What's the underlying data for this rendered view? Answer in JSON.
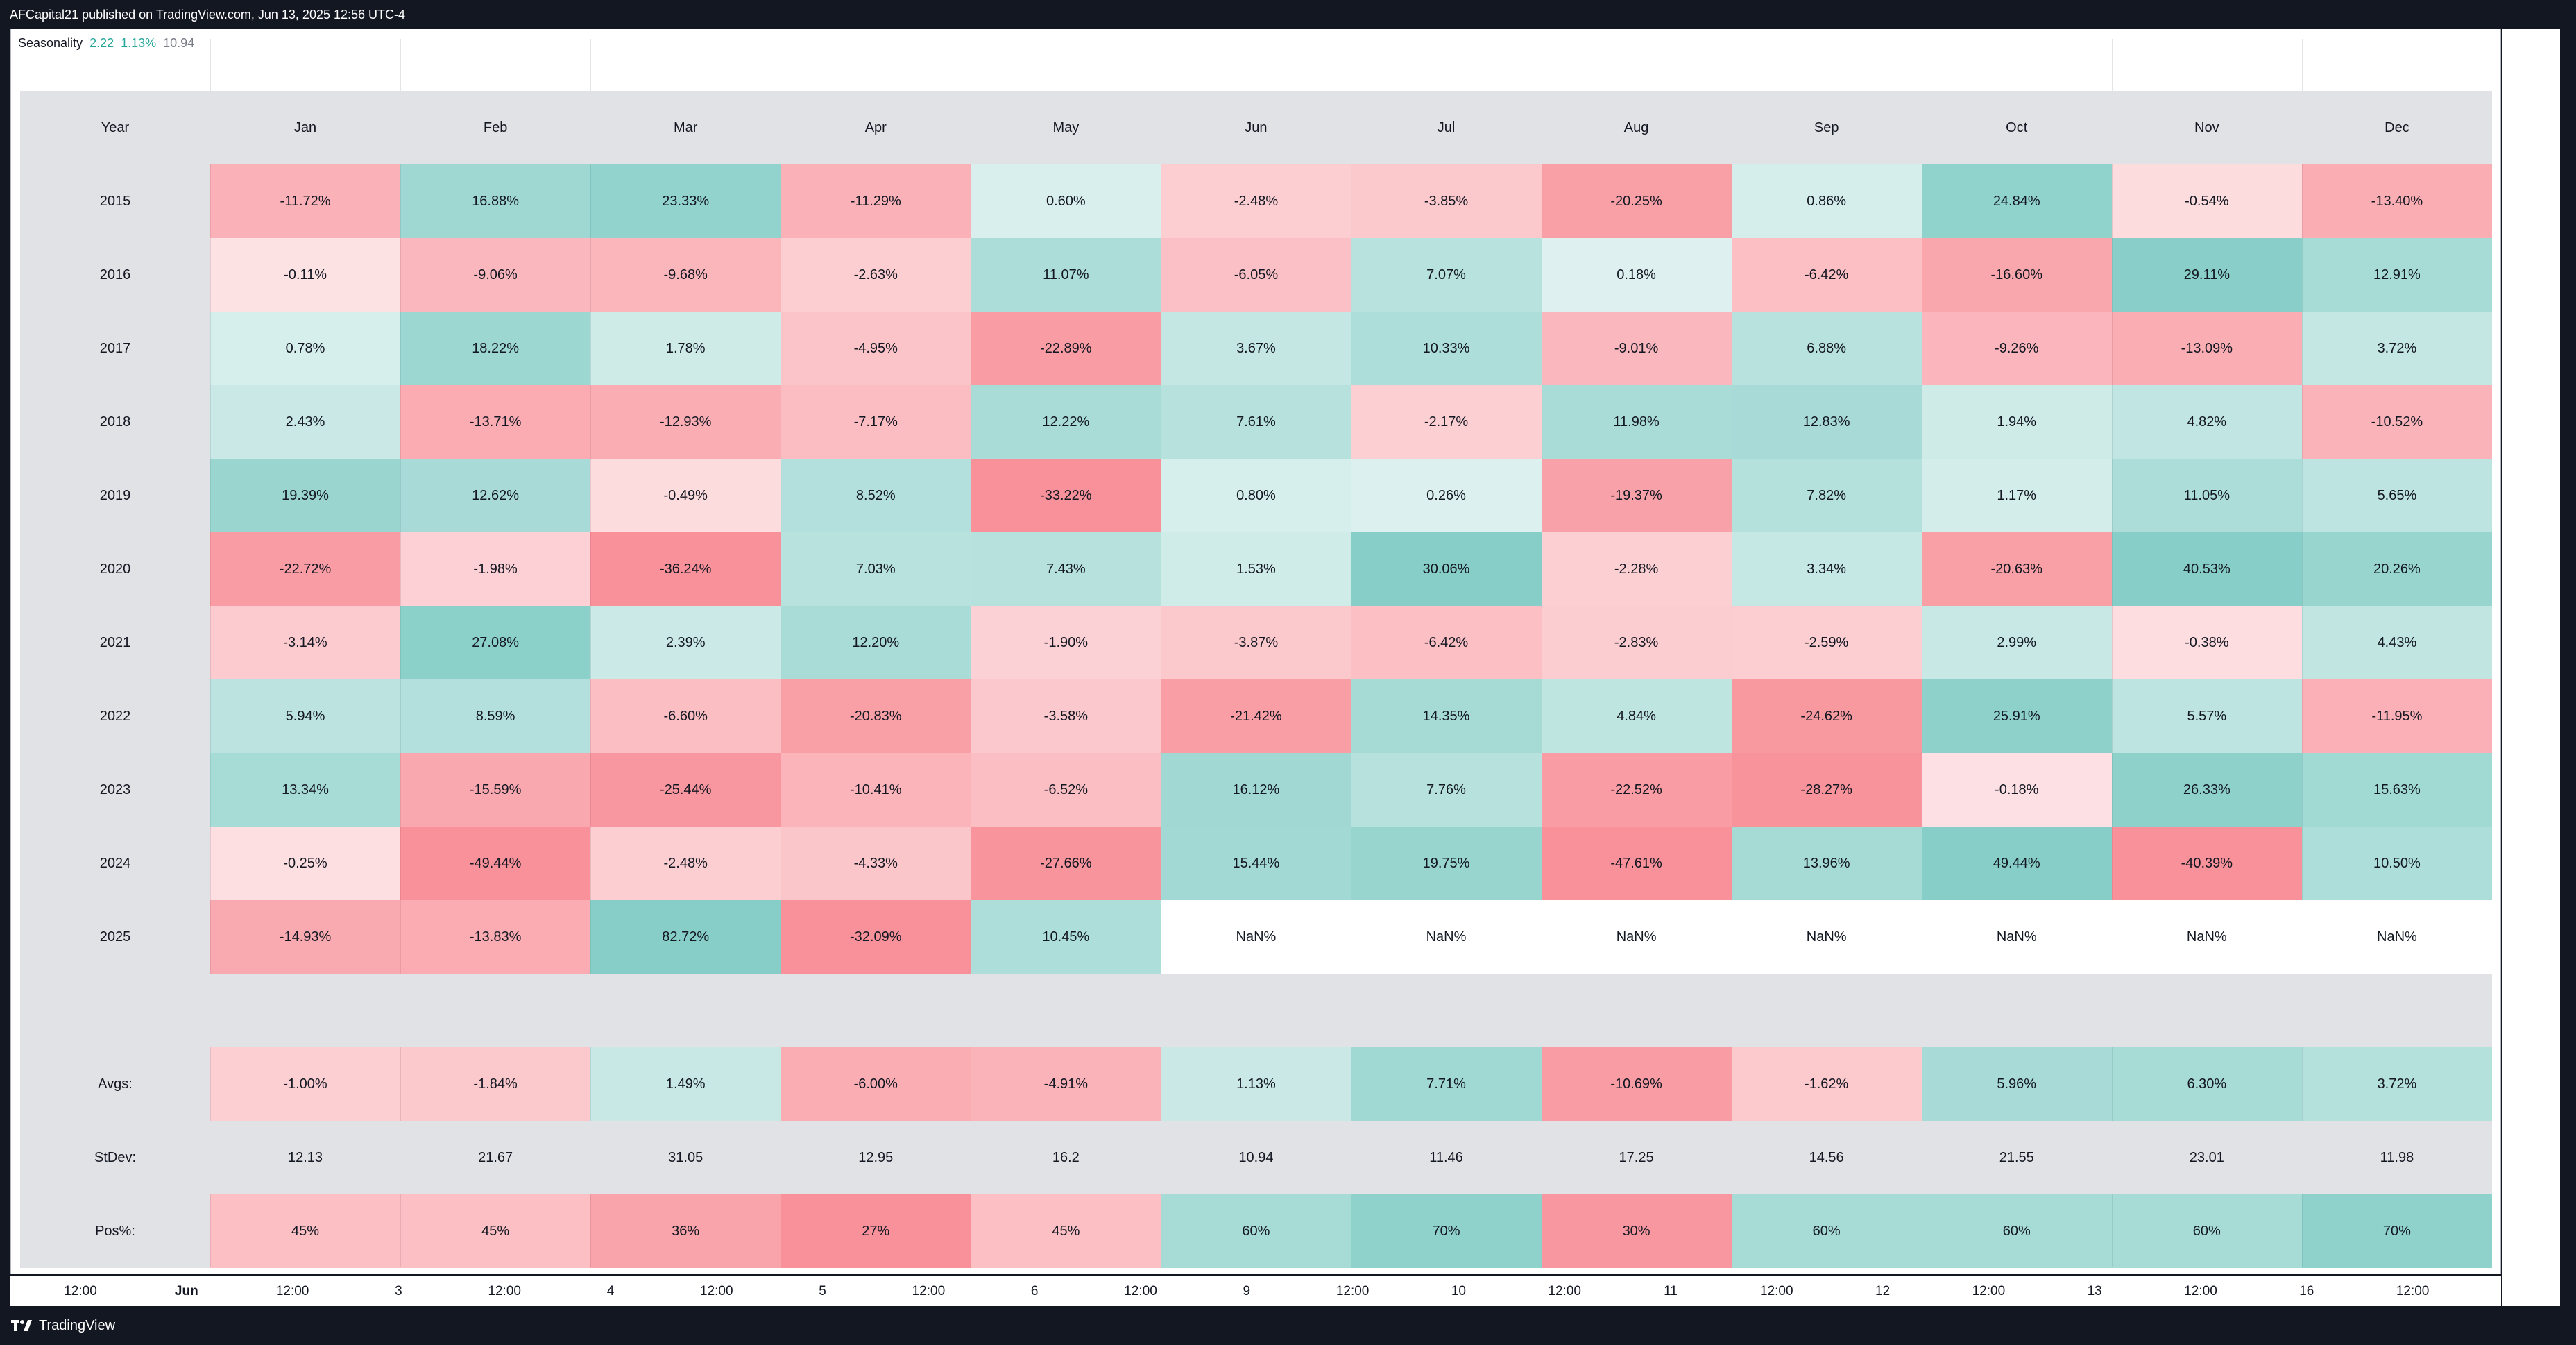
{
  "topbar": {
    "text": "AFCapital21 published on TradingView.com, Jun 13, 2025 12:56 UTC-4"
  },
  "indicator": {
    "name": "Seasonality",
    "v1": "2.22",
    "v2": "1.13%",
    "v3": "10.94"
  },
  "table": {
    "header": [
      "Year",
      "Jan",
      "Feb",
      "Mar",
      "Apr",
      "May",
      "Jun",
      "Jul",
      "Aug",
      "Sep",
      "Oct",
      "Nov",
      "Dec"
    ],
    "rows": [
      {
        "year": "2015",
        "cells": [
          "-11.72%",
          "16.88%",
          "23.33%",
          "-11.29%",
          "0.60%",
          "-2.48%",
          "-3.85%",
          "-20.25%",
          "0.86%",
          "24.84%",
          "-0.54%",
          "-13.40%"
        ]
      },
      {
        "year": "2016",
        "cells": [
          "-0.11%",
          "-9.06%",
          "-9.68%",
          "-2.63%",
          "11.07%",
          "-6.05%",
          "7.07%",
          "0.18%",
          "-6.42%",
          "-16.60%",
          "29.11%",
          "12.91%"
        ]
      },
      {
        "year": "2017",
        "cells": [
          "0.78%",
          "18.22%",
          "1.78%",
          "-4.95%",
          "-22.89%",
          "3.67%",
          "10.33%",
          "-9.01%",
          "6.88%",
          "-9.26%",
          "-13.09%",
          "3.72%"
        ]
      },
      {
        "year": "2018",
        "cells": [
          "2.43%",
          "-13.71%",
          "-12.93%",
          "-7.17%",
          "12.22%",
          "7.61%",
          "-2.17%",
          "11.98%",
          "12.83%",
          "1.94%",
          "4.82%",
          "-10.52%"
        ]
      },
      {
        "year": "2019",
        "cells": [
          "19.39%",
          "12.62%",
          "-0.49%",
          "8.52%",
          "-33.22%",
          "0.80%",
          "0.26%",
          "-19.37%",
          "7.82%",
          "1.17%",
          "11.05%",
          "5.65%"
        ]
      },
      {
        "year": "2020",
        "cells": [
          "-22.72%",
          "-1.98%",
          "-36.24%",
          "7.03%",
          "7.43%",
          "1.53%",
          "30.06%",
          "-2.28%",
          "3.34%",
          "-20.63%",
          "40.53%",
          "20.26%"
        ]
      },
      {
        "year": "2021",
        "cells": [
          "-3.14%",
          "27.08%",
          "2.39%",
          "12.20%",
          "-1.90%",
          "-3.87%",
          "-6.42%",
          "-2.83%",
          "-2.59%",
          "2.99%",
          "-0.38%",
          "4.43%"
        ]
      },
      {
        "year": "2022",
        "cells": [
          "5.94%",
          "8.59%",
          "-6.60%",
          "-20.83%",
          "-3.58%",
          "-21.42%",
          "14.35%",
          "4.84%",
          "-24.62%",
          "25.91%",
          "5.57%",
          "-11.95%"
        ]
      },
      {
        "year": "2023",
        "cells": [
          "13.34%",
          "-15.59%",
          "-25.44%",
          "-10.41%",
          "-6.52%",
          "16.12%",
          "7.76%",
          "-22.52%",
          "-28.27%",
          "-0.18%",
          "26.33%",
          "15.63%"
        ]
      },
      {
        "year": "2024",
        "cells": [
          "-0.25%",
          "-49.44%",
          "-2.48%",
          "-4.33%",
          "-27.66%",
          "15.44%",
          "19.75%",
          "-47.61%",
          "13.96%",
          "49.44%",
          "-40.39%",
          "10.50%"
        ]
      },
      {
        "year": "2025",
        "cells": [
          "-14.93%",
          "-13.83%",
          "82.72%",
          "-32.09%",
          "10.45%",
          "NaN%",
          "NaN%",
          "NaN%",
          "NaN%",
          "NaN%",
          "NaN%",
          "NaN%"
        ]
      }
    ],
    "summary": [
      {
        "label": "Avgs:",
        "cells": [
          "-1.00%",
          "-1.84%",
          "1.49%",
          "-6.00%",
          "-4.91%",
          "1.13%",
          "7.71%",
          "-10.69%",
          "-1.62%",
          "5.96%",
          "6.30%",
          "3.72%"
        ]
      },
      {
        "label": "StDev:",
        "cells": [
          "12.13",
          "21.67",
          "31.05",
          "12.95",
          "16.2",
          "10.94",
          "11.46",
          "17.25",
          "14.56",
          "21.55",
          "23.01",
          "11.98"
        ]
      },
      {
        "label": "Pos%:",
        "cells": [
          "45%",
          "45%",
          "36%",
          "27%",
          "45%",
          "60%",
          "70%",
          "30%",
          "60%",
          "60%",
          "60%",
          "70%"
        ]
      }
    ]
  },
  "time_axis": [
    "12:00",
    "Jun",
    "12:00",
    "3",
    "12:00",
    "4",
    "12:00",
    "5",
    "12:00",
    "6",
    "12:00",
    "9",
    "12:00",
    "10",
    "12:00",
    "11",
    "12:00",
    "12",
    "12:00",
    "13",
    "12:00",
    "16",
    "12:00"
  ],
  "colors": {
    "positive": "#26a69a",
    "negative": "#f23645",
    "neutral_bg": "#e1e2e5",
    "topbar": "#131722"
  },
  "footer": {
    "brand": "TradingView"
  }
}
